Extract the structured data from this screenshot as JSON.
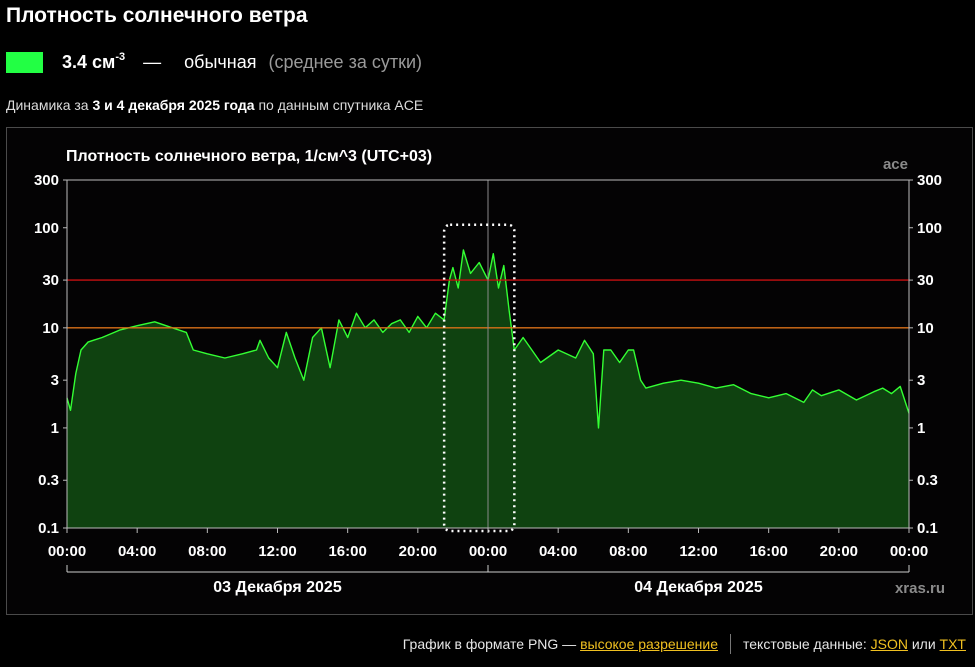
{
  "page": {
    "title": "Плотность солнечного ветра",
    "current": {
      "value": "3.4 см",
      "unit_exp": "-3",
      "dash": "—",
      "level": "обычная",
      "note": "(среднее за сутки)",
      "color": "#22ff44"
    },
    "dynamics": {
      "prefix": "Динамика за",
      "dates": "3 и 4 декабря 2025 года",
      "suffix": "по данным спутника ACE"
    },
    "footer": {
      "png_text": "График в формате PNG —",
      "png_link": "высокое разрешение",
      "text_data": "текстовые данные:",
      "json_link": "JSON",
      "or": "или",
      "txt_link": "TXT"
    }
  },
  "chart_data": {
    "type": "area",
    "title": "Плотность солнечного ветра, 1/см^3 (UTC+03)",
    "source_label": "ace",
    "watermark": "xras.ru",
    "y_scale": "log",
    "ylim": [
      0.1,
      300
    ],
    "y_ticks": [
      0.1,
      0.3,
      1,
      3,
      10,
      30,
      100,
      300
    ],
    "y_tick_labels": [
      "0.1",
      "0.3",
      "1",
      "3",
      "10",
      "30",
      "100",
      "300"
    ],
    "xlim_hours": [
      0,
      48
    ],
    "x_tick_labels": [
      "00:00",
      "04:00",
      "08:00",
      "12:00",
      "16:00",
      "20:00",
      "00:00",
      "04:00",
      "08:00",
      "12:00",
      "16:00",
      "20:00",
      "00:00"
    ],
    "day_labels": [
      "03 Декабря 2025",
      "04 Декабря 2025"
    ],
    "threshold_lines": [
      {
        "value": 30,
        "color": "#c81010"
      },
      {
        "value": 10,
        "color": "#d87018"
      }
    ],
    "highlight_box_hours": [
      21.5,
      25.5
    ],
    "fill_color": "#0f4210",
    "line_color": "#33ff33",
    "grid": false,
    "x": [
      0,
      0.2,
      0.5,
      0.8,
      1.2,
      1.5,
      2,
      3,
      4,
      5,
      6,
      6.8,
      7.2,
      8,
      9,
      10,
      10.8,
      11,
      11.5,
      12,
      12.5,
      13,
      13.5,
      14,
      14.5,
      15,
      15.5,
      16,
      16.5,
      17,
      17.5,
      18,
      18.5,
      19,
      19.5,
      20,
      20.5,
      21,
      21.5,
      21.8,
      22,
      22.3,
      22.6,
      23,
      23.5,
      24,
      24.3,
      24.6,
      24.9,
      25.2,
      25.5,
      26,
      27,
      28,
      29,
      29.5,
      30,
      30.3,
      30.6,
      31,
      31.5,
      32,
      32.3,
      32.7,
      33,
      34,
      35,
      36,
      37,
      38,
      39,
      40,
      41,
      42,
      42.5,
      43,
      44,
      45,
      46,
      46.5,
      47,
      47.5,
      48
    ],
    "values": [
      2,
      1.5,
      3.5,
      6,
      7.2,
      7.5,
      8,
      9.5,
      10.5,
      11.5,
      10,
      9,
      6,
      5.5,
      5,
      5.5,
      6,
      7.5,
      5,
      4,
      9,
      5,
      3,
      8,
      10,
      4,
      12,
      8,
      14,
      10,
      12,
      9,
      11,
      12,
      9,
      13,
      10,
      14,
      12,
      30,
      40,
      25,
      60,
      35,
      45,
      30,
      55,
      25,
      42,
      15,
      6,
      8,
      4.5,
      6,
      5,
      7.5,
      5.5,
      1,
      6,
      6,
      4.5,
      6,
      6,
      3,
      2.5,
      2.8,
      3,
      2.8,
      2.5,
      2.7,
      2.2,
      2,
      2.2,
      1.8,
      2.4,
      2.1,
      2.4,
      1.9,
      2.3,
      2.5,
      2.2,
      2.6,
      1.4
    ]
  }
}
